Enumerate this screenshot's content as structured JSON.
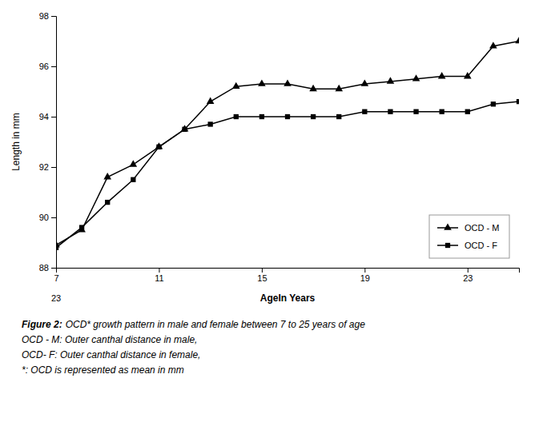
{
  "chart_data": {
    "type": "line",
    "x": [
      7,
      8,
      9,
      10,
      11,
      12,
      13,
      14,
      15,
      16,
      17,
      18,
      19,
      20,
      21,
      22,
      23,
      24,
      25
    ],
    "series": [
      {
        "name": "OCD - M",
        "color": "#000000",
        "marker": "triangle",
        "values": [
          88.9,
          89.5,
          91.6,
          92.1,
          92.8,
          93.5,
          94.6,
          95.2,
          95.3,
          95.3,
          95.1,
          95.1,
          95.3,
          95.4,
          95.5,
          95.6,
          95.6,
          96.8,
          97.0
        ]
      },
      {
        "name": "OCD - F",
        "color": "#000000",
        "marker": "square",
        "values": [
          88.8,
          89.6,
          90.6,
          91.5,
          92.8,
          93.5,
          93.7,
          94.0,
          94.0,
          94.0,
          94.0,
          94.0,
          94.2,
          94.2,
          94.2,
          94.2,
          94.2,
          94.5,
          94.6
        ]
      }
    ],
    "xlabel": "AgeIn Years",
    "ylabel": "Length in mm",
    "xlim": [
      7,
      25
    ],
    "ylim": [
      88,
      98
    ],
    "xticks": [
      7,
      11,
      15,
      19,
      23
    ],
    "yticks": [
      88,
      90,
      92,
      94,
      96,
      98
    ],
    "grid": false,
    "legend": "lower right",
    "annotations": [
      "23"
    ],
    "caption": [
      "Figure 2:",
      "OCD* growth pattern in male and female between 7 to 25 years of age",
      "OCD - M: Outer canthal distance in male,",
      "OCD- F: Outer canthal distance in female,",
      "*: OCD is represented as mean in mm"
    ]
  }
}
